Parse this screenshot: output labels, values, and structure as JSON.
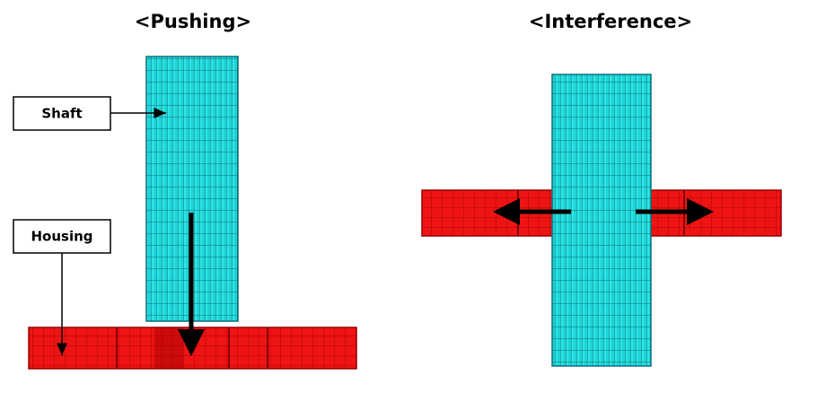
{
  "titles": {
    "pushing": "<Pushing>",
    "interference": "<Interference>"
  },
  "labels": {
    "shaft": "Shaft",
    "housing": "Housing"
  }
}
